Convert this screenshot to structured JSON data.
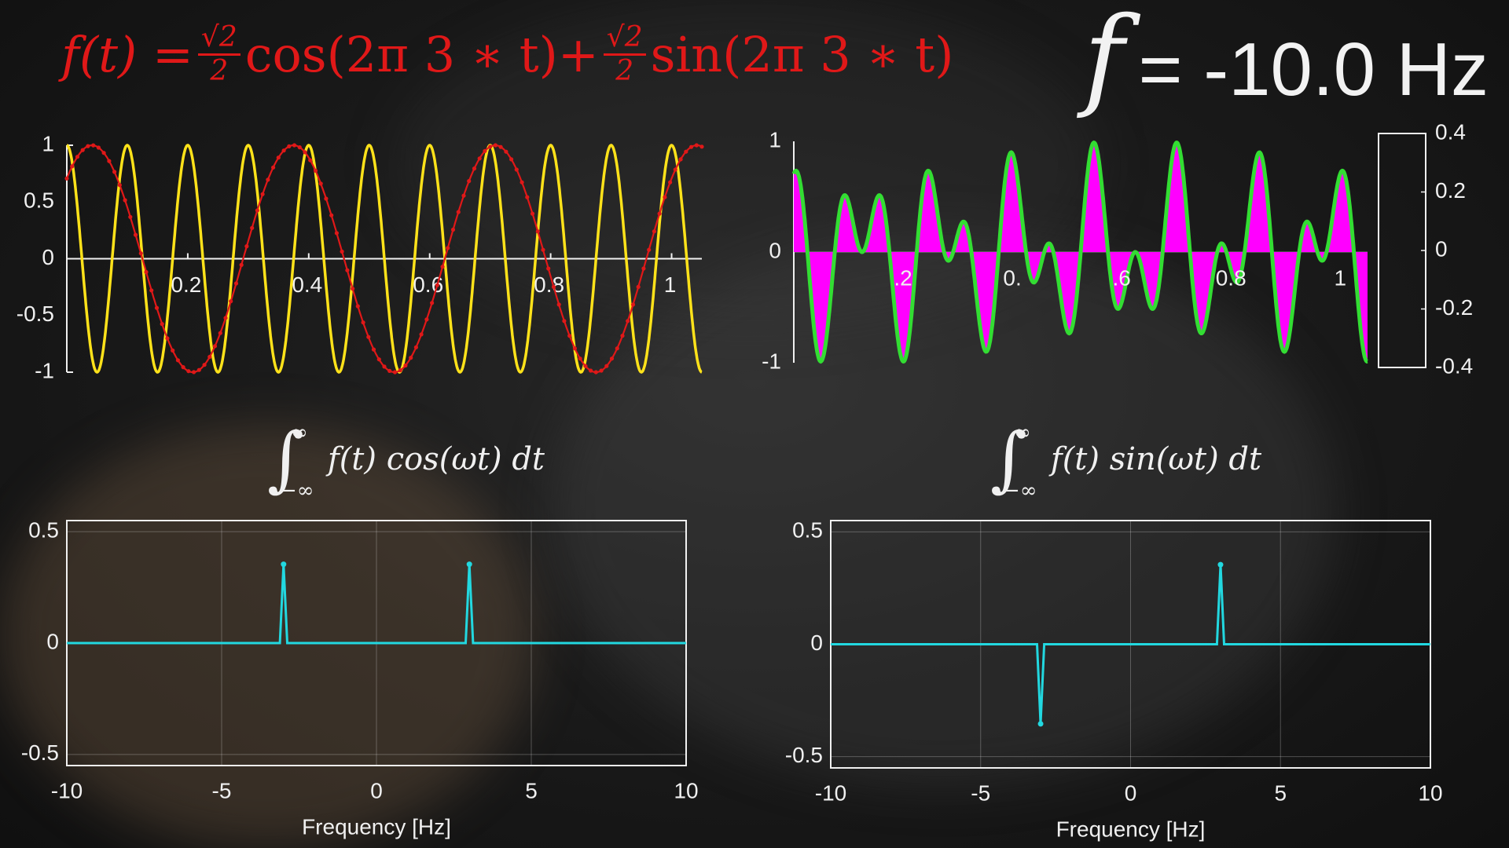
{
  "formula": {
    "f_of_t": "f(t) =",
    "coef1_num": "√2",
    "coef1_den": "2",
    "term1": "cos(2π 3 ∗ t)+",
    "coef2_num": "√2",
    "coef2_den": "2",
    "term2": "sin(2π 3 ∗ t)"
  },
  "freq_readout": {
    "symbol": "f",
    "value": "= -10.0 Hz"
  },
  "integrals": {
    "cos": {
      "upper": "∞",
      "lower": "−∞",
      "expr": "f(t) cos(ωt) dt"
    },
    "sin": {
      "upper": "∞",
      "lower": "−∞",
      "expr": "f(t) sin(ωt) dt"
    }
  },
  "colors": {
    "signal": "#e01818",
    "cos_probe": "#ffe21a",
    "product_line": "#33dd33",
    "product_fill": "#ff00ff",
    "spectrum": "#22d8e0",
    "axes": "#f0f0f0"
  },
  "chart_data": [
    {
      "id": "time-domain",
      "type": "line",
      "x_range": [
        0,
        1.05
      ],
      "ylim": [
        -1,
        1
      ],
      "x_ticks": [
        "0.2",
        "0.4",
        "0.6",
        "0.8",
        "1"
      ],
      "y_ticks": [
        "1",
        "0.5",
        "0",
        "-0.5",
        "-1"
      ],
      "series": [
        {
          "color": "#e01818",
          "dotted": true,
          "frequency_hz": 3,
          "formula": "(√2/2)cos(2π·3t)+(√2/2)sin(2π·3t)"
        },
        {
          "color": "#ffe21a",
          "frequency_hz": 10,
          "formula": "cos(2π·10t)"
        }
      ]
    },
    {
      "id": "product",
      "type": "area",
      "x_range": [
        0,
        1.05
      ],
      "ylim": [
        -1,
        1
      ],
      "x_ticks": [
        ".2",
        "0.",
        ".6",
        "0.8",
        "1"
      ],
      "y_ticks": [
        "1",
        "0",
        "-1"
      ],
      "formula": "f(t)·cos(2π·10t)",
      "colorbar": {
        "range": [
          -0.4,
          0.4
        ],
        "ticks": [
          "0.4",
          "0.2",
          "0",
          "-0.2",
          "-0.4"
        ]
      }
    },
    {
      "id": "cos-spectrum",
      "type": "line",
      "xlabel": "Frequency [Hz]",
      "xlim": [
        -10,
        10
      ],
      "ylim": [
        -0.55,
        0.55
      ],
      "x_ticks": [
        "-10",
        "-5",
        "0",
        "5",
        "10"
      ],
      "y_ticks": [
        "0.5",
        "0",
        "-0.5"
      ],
      "grid": true,
      "baseline": 0,
      "peaks": [
        {
          "x": -3,
          "y": 0.354
        },
        {
          "x": 3,
          "y": 0.354
        }
      ]
    },
    {
      "id": "sin-spectrum",
      "type": "line",
      "xlabel": "Frequency [Hz]",
      "xlim": [
        -10,
        10
      ],
      "ylim": [
        -0.55,
        0.55
      ],
      "x_ticks": [
        "-10",
        "-5",
        "0",
        "5",
        "10"
      ],
      "y_ticks": [
        "0.5",
        "0",
        "-0.5"
      ],
      "grid": true,
      "baseline": 0,
      "peaks": [
        {
          "x": -3,
          "y": -0.354
        },
        {
          "x": 3,
          "y": 0.354
        }
      ]
    }
  ]
}
